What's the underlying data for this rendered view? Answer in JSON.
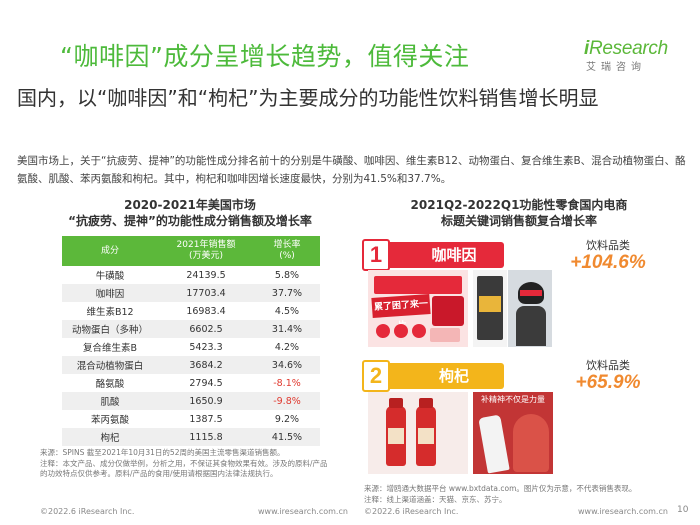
{
  "header": {
    "title": "“咖啡因”成分呈增长趋势，值得关注",
    "logo": {
      "word_prefix": "i",
      "word_rest": "Research",
      "cn": "艾瑞咨询"
    }
  },
  "subtitle": "国内，以“咖啡因”和“枸杞”为主要成分的功能性饮料销售增长明显",
  "paragraph": "美国市场上，关于“抗疲劳、提神”的功能性成分排名前十的分别是牛磺酸、咖啡因、维生素B12、动物蛋白、复合维生素B、混合动植物蛋白、酪氨酸、肌酸、苯丙氨酸和枸杞。其中，枸杞和咖啡因增长速度最快，分别为41.5%和37.7%。",
  "left_chart": {
    "title_line1": "2020-2021年美国市场",
    "title_line2": "“抗疲劳、提神”的功能性成分销售额及增长率",
    "headers": {
      "col1": "成分",
      "col2_line1": "2021年销售额",
      "col2_line2": "(万美元)",
      "col3_line1": "增长率",
      "col3_line2": "(%)"
    },
    "rows": [
      {
        "name": "牛磺酸",
        "sales": "24139.5",
        "growth": "5.8%"
      },
      {
        "name": "咖啡因",
        "sales": "17703.4",
        "growth": "37.7%"
      },
      {
        "name": "维生素B12",
        "sales": "16983.4",
        "growth": "4.5%"
      },
      {
        "name": "动物蛋白（多种）",
        "sales": "6602.5",
        "growth": "31.4%"
      },
      {
        "name": "复合维生素B",
        "sales": "5423.3",
        "growth": "4.2%"
      },
      {
        "name": "混合动植物蛋白",
        "sales": "3684.2",
        "growth": "34.6%"
      },
      {
        "name": "酪氨酸",
        "sales": "2794.5",
        "growth": "-8.1%"
      },
      {
        "name": "肌酸",
        "sales": "1650.9",
        "growth": "-9.8%"
      },
      {
        "name": "苯丙氨酸",
        "sales": "1387.5",
        "growth": "9.2%"
      },
      {
        "name": "枸杞",
        "sales": "1115.8",
        "growth": "41.5%"
      }
    ]
  },
  "right_chart": {
    "title_line1": "2021Q2-2022Q1功能性零食国内电商",
    "title_line2": "标题关键词销售额复合增长率",
    "items": [
      {
        "rank": "1",
        "keyword": "咖啡因",
        "category": "饮料品类",
        "growth": "+104.6%",
        "color": "#e5293a",
        "product_text": {
          "banner": "累了困了来一片",
          "tag": "5分钟速溶"
        }
      },
      {
        "rank": "2",
        "keyword": "枸杞",
        "category": "饮料品类",
        "growth": "+65.9%",
        "color": "#f3b51b",
        "product_text": {
          "banner": "补精神不仅是力量"
        }
      }
    ]
  },
  "footnotes": {
    "left": [
      "来源：SPINS 截至2021年10月31日的52周的美国主流零售渠道销售额。",
      "注释：本文产品、成分仅做举例，分析之用，不保证其食物效果有效。涉及的原料/产品",
      "的功效特点仅供参考。原料/产品的食用/使用请根据国内法律法规执行。"
    ],
    "right": [
      "来源：增鸥通大数据平台 www.bxtdata.com。图片仅为示意，不代表销售表现。",
      "注释：线上渠道涵盖：天猫、京东、苏宁。"
    ]
  },
  "footer": {
    "left_copyright": "©2022.6 iResearch Inc.",
    "left_url": "www.iresearch.com.cn",
    "right_copyright": "©2022.6 iResearch Inc.",
    "right_url": "www.iresearch.com.cn",
    "page": "10"
  },
  "colors": {
    "brand_green": "#5cb83a",
    "title_green": "#4dba3b",
    "rank1_red": "#e5293a",
    "rank2_yellow": "#f3b51b",
    "growth_orange": "#f08a30",
    "negative_red": "#e0392f"
  }
}
